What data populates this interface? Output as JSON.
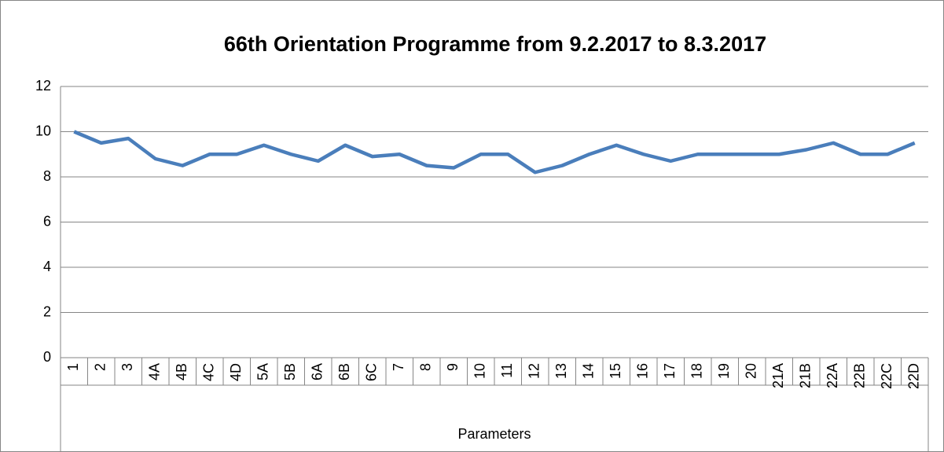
{
  "chart_data": {
    "type": "line",
    "title": "66th Orientation Programme  from 9.2.2017 to 8.3.2017",
    "xlabel": "Parameters",
    "categories": [
      "1",
      "2",
      "3",
      "4A",
      "4B",
      "4C",
      "4D",
      "5A",
      "5B",
      "6A",
      "6B",
      "6C",
      "7",
      "8",
      "9",
      "10",
      "11",
      "12",
      "13",
      "14",
      "15",
      "16",
      "17",
      "18",
      "19",
      "20",
      "21A",
      "21B",
      "22A",
      "22B",
      "22C",
      "22D"
    ],
    "series": [
      {
        "color": "#4a7ebb",
        "values": [
          10,
          9.5,
          9.7,
          8.8,
          8.5,
          9,
          9,
          9.4,
          9,
          8.7,
          9.4,
          8.9,
          9,
          8.5,
          8.4,
          9,
          9,
          8.2,
          8.5,
          9,
          9.4,
          9,
          8.7,
          9,
          9,
          9,
          9,
          9.2,
          9.5,
          9,
          9,
          9.5
        ]
      }
    ],
    "ylim": [
      0,
      12
    ],
    "yticks": [
      0,
      2,
      4,
      6,
      8,
      10,
      12
    ],
    "grid": true
  }
}
